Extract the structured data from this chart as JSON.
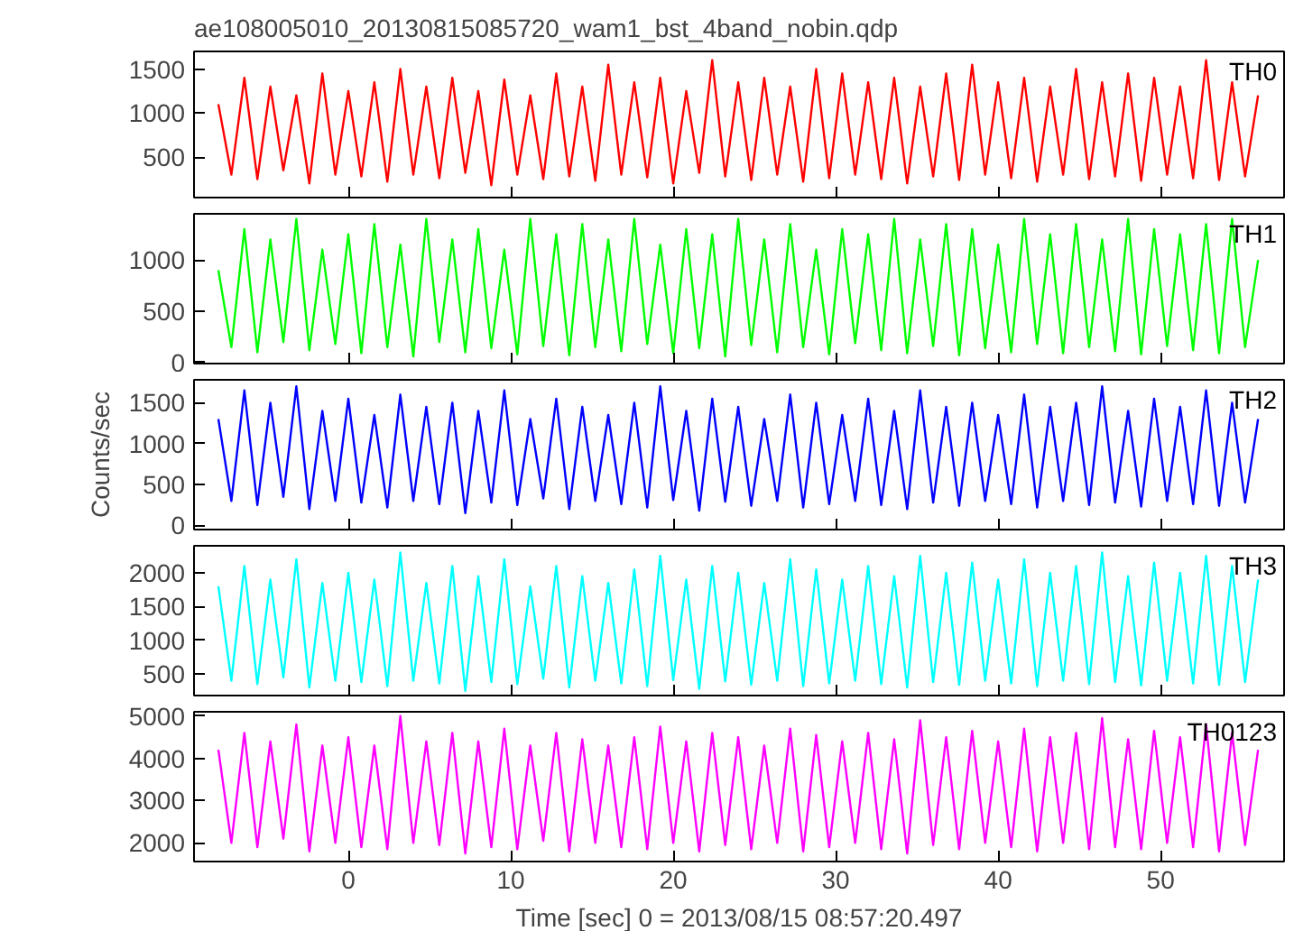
{
  "chart_data": [
    {
      "type": "line",
      "title": "ae108005010_20130815085720_wam1_bst_4band_nobin.qdp",
      "tick_labels": "y",
      "xlim": [
        -9.5,
        57.6
      ],
      "xticks": [
        0,
        10,
        20,
        30,
        40,
        50
      ],
      "ylim": [
        40,
        1700
      ],
      "yticks": [
        500,
        1000,
        1500
      ],
      "x": [
        -8,
        -7.2,
        -6.4,
        -5.6,
        -4.8,
        -4,
        -3.2,
        -2.4,
        -1.6,
        -0.8,
        0,
        0.8,
        1.6,
        2.4,
        3.2,
        4,
        4.8,
        5.6,
        6.4,
        7.2,
        8,
        8.8,
        9.6,
        10.4,
        11.2,
        12,
        12.8,
        13.6,
        14.4,
        15.2,
        16,
        16.8,
        17.6,
        18.4,
        19.2,
        20,
        20.8,
        21.6,
        22.4,
        23.2,
        24,
        24.8,
        25.6,
        26.4,
        27.2,
        28,
        28.8,
        29.6,
        30.4,
        31.2,
        32,
        32.8,
        33.6,
        34.4,
        35.2,
        36,
        36.8,
        37.6,
        38.4,
        39.2,
        40,
        40.8,
        41.6,
        42.4,
        43.2,
        44,
        44.8,
        45.6,
        46.4,
        47.2,
        48,
        48.8,
        49.6,
        50.4,
        51.2,
        52,
        52.8,
        53.6,
        54.4,
        55.2,
        56
      ],
      "series": [
        {
          "name": "TH0",
          "color": "#ff0000",
          "values": [
            1100,
            300,
            1400,
            250,
            1300,
            350,
            1200,
            200,
            1450,
            300,
            1250,
            280,
            1350,
            220,
            1500,
            300,
            1300,
            260,
            1400,
            320,
            1250,
            180,
            1380,
            300,
            1200,
            250,
            1450,
            280,
            1300,
            230,
            1550,
            300,
            1350,
            270,
            1400,
            200,
            1250,
            320,
            1600,
            280,
            1350,
            240,
            1400,
            300,
            1300,
            220,
            1500,
            260,
            1450,
            300,
            1350,
            250,
            1400,
            200,
            1300,
            280,
            1450,
            240,
            1550,
            300,
            1350,
            260,
            1400,
            220,
            1300,
            300,
            1500,
            250,
            1350,
            280,
            1450,
            230,
            1400,
            300,
            1300,
            260,
            1600,
            240,
            1350,
            280,
            1200
          ]
        }
      ]
    },
    {
      "type": "line",
      "tick_labels": "y",
      "xlim": [
        -9.5,
        57.6
      ],
      "xticks": [
        0,
        10,
        20,
        30,
        40,
        50
      ],
      "ylim": [
        -10,
        1450
      ],
      "yticks": [
        0,
        500,
        1000
      ],
      "x": [
        -8,
        -7.2,
        -6.4,
        -5.6,
        -4.8,
        -4,
        -3.2,
        -2.4,
        -1.6,
        -0.8,
        0,
        0.8,
        1.6,
        2.4,
        3.2,
        4,
        4.8,
        5.6,
        6.4,
        7.2,
        8,
        8.8,
        9.6,
        10.4,
        11.2,
        12,
        12.8,
        13.6,
        14.4,
        15.2,
        16,
        16.8,
        17.6,
        18.4,
        19.2,
        20,
        20.8,
        21.6,
        22.4,
        23.2,
        24,
        24.8,
        25.6,
        26.4,
        27.2,
        28,
        28.8,
        29.6,
        30.4,
        31.2,
        32,
        32.8,
        33.6,
        34.4,
        35.2,
        36,
        36.8,
        37.6,
        38.4,
        39.2,
        40,
        40.8,
        41.6,
        42.4,
        43.2,
        44,
        44.8,
        45.6,
        46.4,
        47.2,
        48,
        48.8,
        49.6,
        50.4,
        51.2,
        52,
        52.8,
        53.6,
        54.4,
        55.2,
        56
      ],
      "series": [
        {
          "name": "TH1",
          "color": "#00ff00",
          "values": [
            900,
            150,
            1300,
            100,
            1200,
            200,
            1400,
            120,
            1100,
            180,
            1250,
            90,
            1350,
            150,
            1150,
            60,
            1400,
            200,
            1200,
            100,
            1300,
            140,
            1100,
            80,
            1400,
            160,
            1250,
            70,
            1350,
            150,
            1200,
            110,
            1400,
            180,
            1150,
            90,
            1300,
            140,
            1250,
            60,
            1400,
            170,
            1200,
            100,
            1350,
            150,
            1100,
            80,
            1300,
            190,
            1250,
            120,
            1400,
            90,
            1200,
            160,
            1350,
            70,
            1300,
            140,
            1150,
            100,
            1400,
            180,
            1250,
            90,
            1350,
            150,
            1200,
            110,
            1400,
            80,
            1300,
            160,
            1250,
            120,
            1350,
            90,
            1400,
            150,
            1000
          ]
        }
      ]
    },
    {
      "type": "line",
      "tick_labels": "y",
      "ylabel": "Counts/sec",
      "xlim": [
        -9.5,
        57.6
      ],
      "xticks": [
        0,
        10,
        20,
        30,
        40,
        50
      ],
      "ylim": [
        -50,
        1780
      ],
      "yticks": [
        0,
        500,
        1000,
        1500
      ],
      "x": [
        -8,
        -7.2,
        -6.4,
        -5.6,
        -4.8,
        -4,
        -3.2,
        -2.4,
        -1.6,
        -0.8,
        0,
        0.8,
        1.6,
        2.4,
        3.2,
        4,
        4.8,
        5.6,
        6.4,
        7.2,
        8,
        8.8,
        9.6,
        10.4,
        11.2,
        12,
        12.8,
        13.6,
        14.4,
        15.2,
        16,
        16.8,
        17.6,
        18.4,
        19.2,
        20,
        20.8,
        21.6,
        22.4,
        23.2,
        24,
        24.8,
        25.6,
        26.4,
        27.2,
        28,
        28.8,
        29.6,
        30.4,
        31.2,
        32,
        32.8,
        33.6,
        34.4,
        35.2,
        36,
        36.8,
        37.6,
        38.4,
        39.2,
        40,
        40.8,
        41.6,
        42.4,
        43.2,
        44,
        44.8,
        45.6,
        46.4,
        47.2,
        48,
        48.8,
        49.6,
        50.4,
        51.2,
        52,
        52.8,
        53.6,
        54.4,
        55.2,
        56
      ],
      "series": [
        {
          "name": "TH2",
          "color": "#0000ff",
          "values": [
            1300,
            300,
            1650,
            250,
            1500,
            350,
            1700,
            200,
            1400,
            300,
            1550,
            280,
            1350,
            220,
            1600,
            300,
            1450,
            260,
            1500,
            150,
            1400,
            280,
            1650,
            250,
            1300,
            330,
            1550,
            200,
            1450,
            300,
            1350,
            260,
            1500,
            220,
            1700,
            310,
            1400,
            180,
            1550,
            290,
            1450,
            240,
            1300,
            300,
            1600,
            220,
            1500,
            260,
            1350,
            300,
            1550,
            250,
            1400,
            200,
            1650,
            280,
            1450,
            240,
            1500,
            300,
            1350,
            260,
            1600,
            220,
            1450,
            300,
            1500,
            250,
            1700,
            280,
            1400,
            230,
            1550,
            300,
            1450,
            260,
            1650,
            240,
            1500,
            280,
            1300
          ]
        }
      ]
    },
    {
      "type": "line",
      "tick_labels": "y",
      "xlim": [
        -9.5,
        57.6
      ],
      "xticks": [
        0,
        10,
        20,
        30,
        40,
        50
      ],
      "ylim": [
        180,
        2400
      ],
      "yticks": [
        500,
        1000,
        1500,
        2000
      ],
      "x": [
        -8,
        -7.2,
        -6.4,
        -5.6,
        -4.8,
        -4,
        -3.2,
        -2.4,
        -1.6,
        -0.8,
        0,
        0.8,
        1.6,
        2.4,
        3.2,
        4,
        4.8,
        5.6,
        6.4,
        7.2,
        8,
        8.8,
        9.6,
        10.4,
        11.2,
        12,
        12.8,
        13.6,
        14.4,
        15.2,
        16,
        16.8,
        17.6,
        18.4,
        19.2,
        20,
        20.8,
        21.6,
        22.4,
        23.2,
        24,
        24.8,
        25.6,
        26.4,
        27.2,
        28,
        28.8,
        29.6,
        30.4,
        31.2,
        32,
        32.8,
        33.6,
        34.4,
        35.2,
        36,
        36.8,
        37.6,
        38.4,
        39.2,
        40,
        40.8,
        41.6,
        42.4,
        43.2,
        44,
        44.8,
        45.6,
        46.4,
        47.2,
        48,
        48.8,
        49.6,
        50.4,
        51.2,
        52,
        52.8,
        53.6,
        54.4,
        55.2,
        56
      ],
      "series": [
        {
          "name": "TH3",
          "color": "#00ffff",
          "values": [
            1800,
            400,
            2100,
            350,
            1900,
            450,
            2200,
            300,
            1850,
            400,
            2000,
            380,
            1900,
            320,
            2300,
            400,
            1850,
            360,
            2100,
            250,
            1950,
            380,
            2200,
            350,
            1800,
            430,
            2100,
            300,
            1950,
            400,
            1850,
            360,
            2050,
            320,
            2250,
            410,
            1900,
            280,
            2100,
            390,
            2000,
            340,
            1850,
            400,
            2200,
            320,
            2050,
            360,
            1900,
            400,
            2100,
            350,
            1950,
            300,
            2250,
            380,
            2000,
            340,
            2150,
            400,
            1900,
            360,
            2200,
            320,
            2000,
            400,
            2100,
            350,
            2300,
            380,
            1950,
            330,
            2150,
            400,
            2000,
            360,
            2250,
            340,
            2100,
            380,
            1900
          ]
        }
      ]
    },
    {
      "type": "line",
      "xlabel": "Time [sec] 0 = 2013/08/15 08:57:20.497",
      "xlim": [
        -9.5,
        57.6
      ],
      "xticks": [
        0,
        10,
        20,
        30,
        40,
        50
      ],
      "ylim": [
        1560,
        5100
      ],
      "yticks": [
        2000,
        3000,
        4000,
        5000
      ],
      "x": [
        -8,
        -7.2,
        -6.4,
        -5.6,
        -4.8,
        -4,
        -3.2,
        -2.4,
        -1.6,
        -0.8,
        0,
        0.8,
        1.6,
        2.4,
        3.2,
        4,
        4.8,
        5.6,
        6.4,
        7.2,
        8,
        8.8,
        9.6,
        10.4,
        11.2,
        12,
        12.8,
        13.6,
        14.4,
        15.2,
        16,
        16.8,
        17.6,
        18.4,
        19.2,
        20,
        20.8,
        21.6,
        22.4,
        23.2,
        24,
        24.8,
        25.6,
        26.4,
        27.2,
        28,
        28.8,
        29.6,
        30.4,
        31.2,
        32,
        32.8,
        33.6,
        34.4,
        35.2,
        36,
        36.8,
        37.6,
        38.4,
        39.2,
        40,
        40.8,
        41.6,
        42.4,
        43.2,
        44,
        44.8,
        45.6,
        46.4,
        47.2,
        48,
        48.8,
        49.6,
        50.4,
        51.2,
        52,
        52.8,
        53.6,
        54.4,
        55.2,
        56
      ],
      "series": [
        {
          "name": "TH0123",
          "color": "#ff00ff",
          "values": [
            4200,
            2000,
            4600,
            1900,
            4400,
            2100,
            4800,
            1800,
            4300,
            2000,
            4500,
            1900,
            4300,
            1850,
            5000,
            2000,
            4400,
            1950,
            4600,
            1750,
            4400,
            1900,
            4700,
            1850,
            4300,
            2050,
            4600,
            1800,
            4450,
            2000,
            4300,
            1900,
            4500,
            1850,
            4750,
            2000,
            4400,
            1800,
            4600,
            1950,
            4500,
            1850,
            4300,
            2000,
            4700,
            1800,
            4550,
            1900,
            4400,
            2000,
            4600,
            1850,
            4450,
            1750,
            4900,
            1950,
            4500,
            1850,
            4650,
            2000,
            4400,
            1900,
            4700,
            1800,
            4500,
            2000,
            4600,
            1850,
            4950,
            1900,
            4450,
            1850,
            4650,
            2000,
            4500,
            1900,
            4800,
            1800,
            4600,
            1950,
            4200
          ]
        }
      ]
    }
  ]
}
